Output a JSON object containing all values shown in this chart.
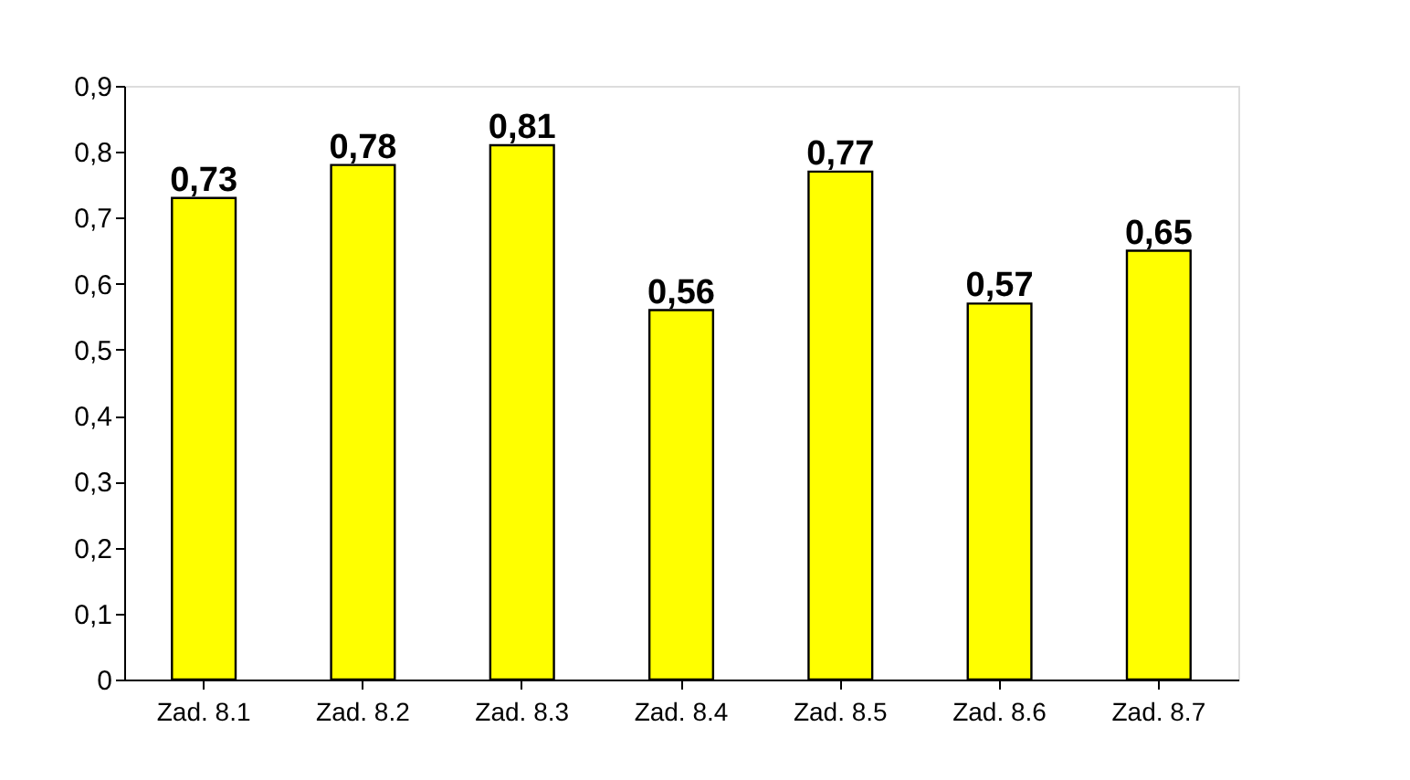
{
  "chart_data": {
    "type": "bar",
    "categories": [
      "Zad. 8.1",
      "Zad. 8.2",
      "Zad. 8.3",
      "Zad. 8.4",
      "Zad. 8.5",
      "Zad. 8.6",
      "Zad. 8.7"
    ],
    "values": [
      0.73,
      0.78,
      0.81,
      0.56,
      0.77,
      0.57,
      0.65
    ],
    "value_labels": [
      "0,73",
      "0,78",
      "0,81",
      "0,56",
      "0,77",
      "0,57",
      "0,65"
    ],
    "color": "#ffff00",
    "ylim": [
      0,
      0.9
    ],
    "yticks": [
      0,
      {
        "value": 0.1,
        "label": "0,1"
      },
      {
        "value": 0.2,
        "label": "0,2"
      },
      {
        "value": 0.3,
        "label": "0,3"
      },
      {
        "value": 0.4,
        "label": "0,4"
      },
      {
        "value": 0.5,
        "label": "0,5"
      },
      {
        "value": 0.6,
        "label": "0,6"
      },
      {
        "value": 0.7,
        "label": "0,7"
      },
      {
        "value": 0.8,
        "label": "0,8"
      },
      {
        "value": 0.9,
        "label": "0,9"
      }
    ],
    "grid": false
  }
}
